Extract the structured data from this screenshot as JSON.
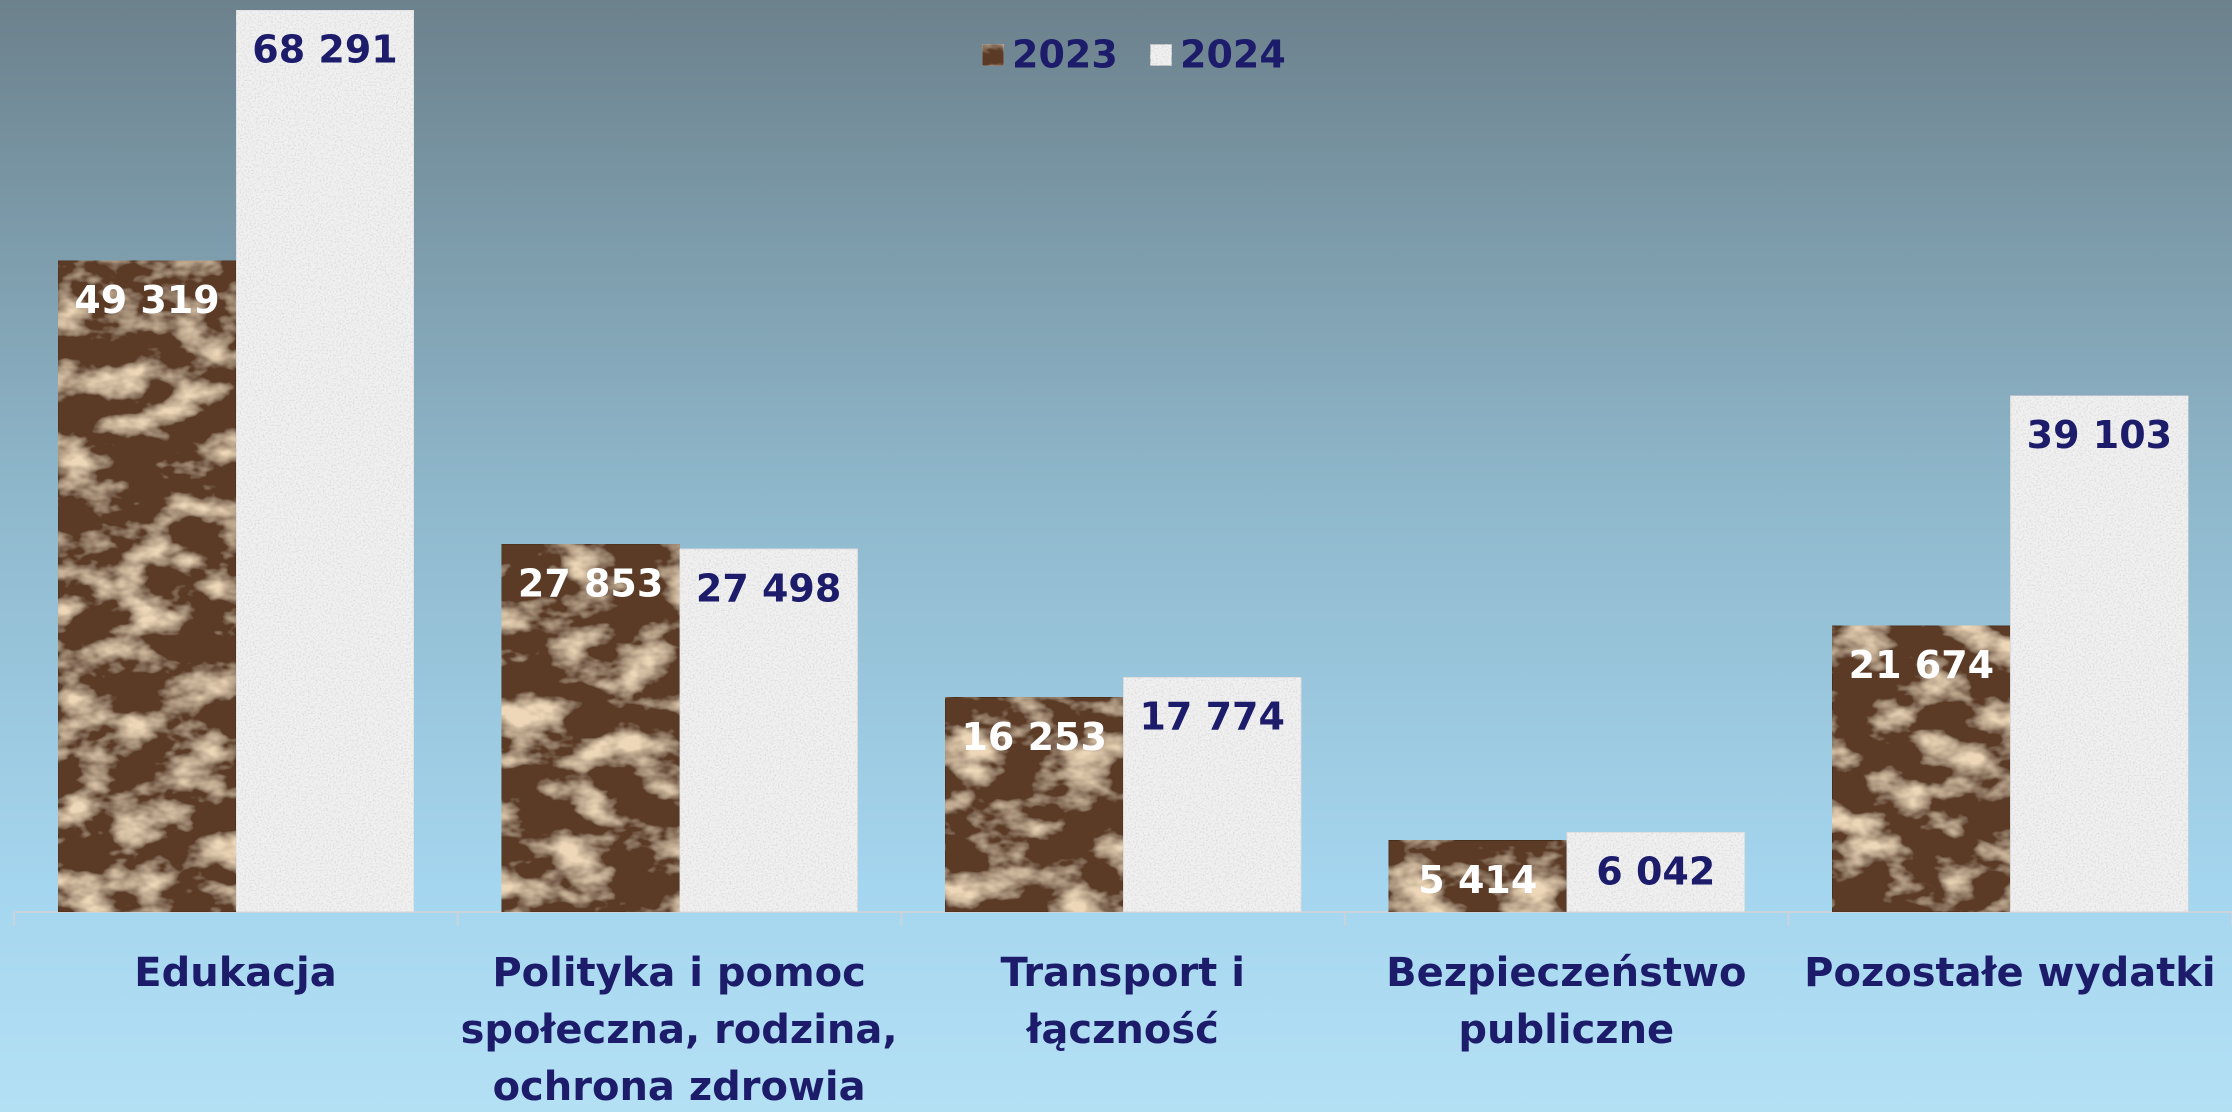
{
  "chart_data": {
    "type": "bar",
    "categories": [
      "Edukacja",
      "Polityka i pomoc społeczna, rodzina, ochrona zdrowia",
      "Transport i łączność",
      "Bezpieczeństwo publiczne",
      "Pozostałe wydatki"
    ],
    "series": [
      {
        "name": "2023",
        "color": "#5b3b25",
        "values": [
          49319,
          27853,
          16253,
          5414,
          21674
        ],
        "value_labels": [
          "49 319",
          "27 853",
          "16 253",
          "5 414",
          "21 674"
        ]
      },
      {
        "name": "2024",
        "color": "#f1f1f1",
        "values": [
          68291,
          27498,
          17774,
          6042,
          39103
        ],
        "value_labels": [
          "68 291",
          "27 498",
          "17 774",
          "6 042",
          "39 103"
        ]
      }
    ],
    "legend": "top"
  }
}
